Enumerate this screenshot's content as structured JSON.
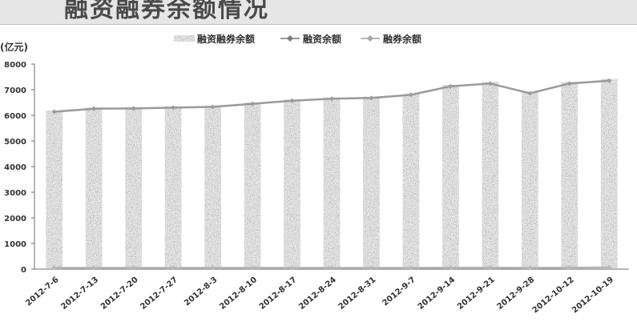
{
  "chart_data": {
    "type": "bar",
    "title": "融资融券余额情况",
    "ylabel": "(亿元)",
    "ylim": [
      0,
      8000
    ],
    "yticks": [
      0,
      1000,
      2000,
      3000,
      4000,
      5000,
      6000,
      7000,
      8000
    ],
    "ytick_labels": [
      "0",
      "1000",
      "2000",
      "3000",
      "4000",
      "5000",
      "6000",
      "7000",
      "8000"
    ],
    "grid": false,
    "legend_position": "top",
    "categories": [
      "2012-7-6",
      "2012-7-13",
      "2012-7-20",
      "2012-7-27",
      "2012-8-3",
      "2012-8-10",
      "2012-8-17",
      "2012-8-24",
      "2012-8-31",
      "2012-9-7",
      "2012-9-14",
      "2012-9-21",
      "2012-9-28",
      "2012-10-12",
      "2012-10-19"
    ],
    "series": [
      {
        "name": "融资融券余额",
        "kind": "bar",
        "color": "#7a7a7a",
        "values": [
          6190,
          6310,
          6320,
          6350,
          6380,
          6500,
          6620,
          6700,
          6730,
          6850,
          7190,
          7300,
          6910,
          7300,
          7420
        ]
      },
      {
        "name": "融资余额",
        "kind": "line",
        "color": "#9a9a9a",
        "values": [
          6140,
          6260,
          6270,
          6300,
          6330,
          6450,
          6570,
          6650,
          6680,
          6800,
          7130,
          7240,
          6860,
          7240,
          7350
        ]
      },
      {
        "name": "融券余额",
        "kind": "line",
        "color": "#b8b8b8",
        "values": [
          50,
          50,
          50,
          50,
          50,
          50,
          50,
          50,
          50,
          50,
          60,
          60,
          50,
          60,
          70
        ]
      }
    ]
  },
  "colors": {
    "axis": "#6e6e6e",
    "title_band": "#e6e6e6"
  }
}
